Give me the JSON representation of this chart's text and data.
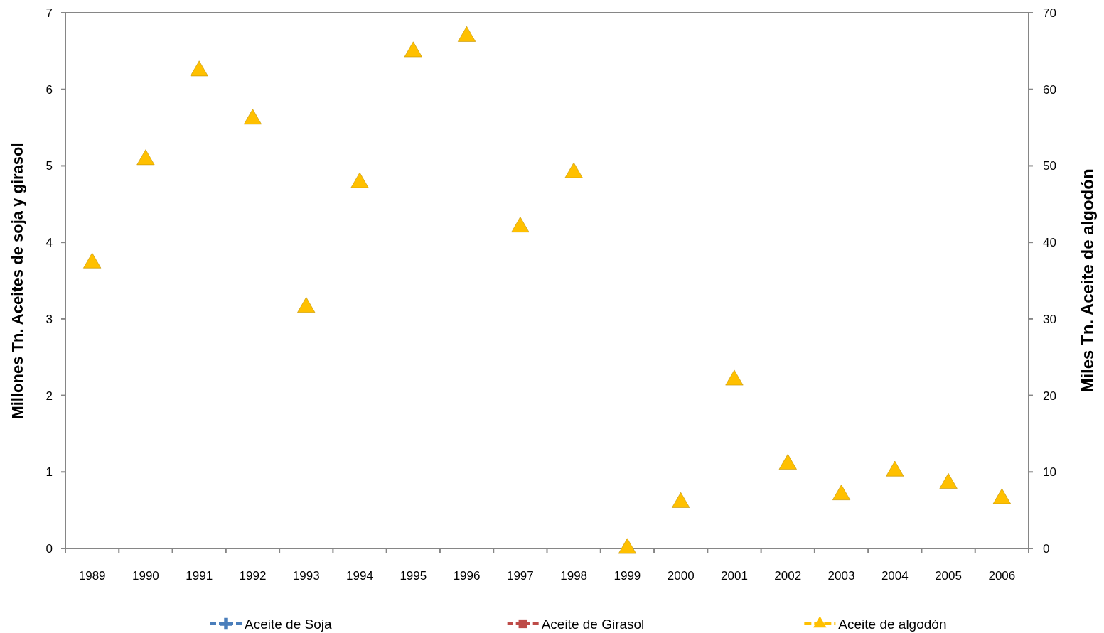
{
  "chart_data": {
    "type": "scatter",
    "ylabel": "Millones Tn. Aceites de soja y girasol",
    "y2label": "Miles Tn. Aceite de algodón",
    "categories": [
      "1989",
      "1990",
      "1991",
      "1992",
      "1993",
      "1994",
      "1995",
      "1996",
      "1997",
      "1998",
      "1999",
      "2000",
      "2001",
      "2002",
      "2003",
      "2004",
      "2005",
      "2006"
    ],
    "series": [
      {
        "name": "Aceite de Soja",
        "color": "#4a7ebb",
        "marker": "cross",
        "line_style": "dashed",
        "values": [
          null,
          null,
          null,
          null,
          null,
          null,
          null,
          null,
          null,
          null,
          null,
          null,
          null,
          null,
          null,
          null,
          null,
          null
        ]
      },
      {
        "name": "Aceite de Girasol",
        "color": "#be4b48",
        "marker": "square",
        "line_style": "dashed",
        "values": [
          null,
          null,
          null,
          null,
          null,
          null,
          null,
          null,
          null,
          null,
          null,
          null,
          null,
          null,
          null,
          null,
          null,
          null
        ]
      },
      {
        "name": "Aceite de algodón",
        "color": "#ffc000",
        "marker": "triangle",
        "axis": "y2",
        "values": [
          37.3,
          50.8,
          62.4,
          56.1,
          31.5,
          47.8,
          64.9,
          66.9,
          42,
          49.1,
          0,
          6,
          22,
          11,
          7,
          10.1,
          8.5,
          6.5
        ]
      }
    ],
    "ylim": [
      0,
      7
    ],
    "yticks": [
      0,
      1,
      2,
      3,
      4,
      5,
      6,
      7
    ],
    "y2lim": [
      0,
      70
    ],
    "y2ticks": [
      0,
      10,
      20,
      30,
      40,
      50,
      60,
      70
    ],
    "grid": false,
    "legend": "bottom"
  }
}
